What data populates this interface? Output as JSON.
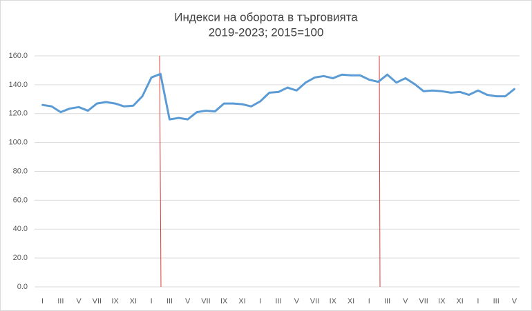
{
  "chart_data": {
    "type": "line",
    "title": "Индекси на оборота в търговията",
    "subtitle": "2019-2023; 2015=100",
    "categories": [
      "I",
      null,
      "III",
      null,
      "V",
      null,
      "VII",
      null,
      "IX",
      null,
      "XI",
      null,
      "I",
      null,
      "III",
      null,
      "V",
      null,
      "VII",
      null,
      "IX",
      null,
      "XI",
      null,
      "I",
      null,
      "III",
      null,
      "V",
      null,
      "VII",
      null,
      "IX",
      null,
      "XI",
      null,
      "I",
      null,
      "III",
      null,
      "V",
      null,
      "VII",
      null,
      "IX",
      null,
      "XI",
      null,
      "I",
      null,
      "III",
      null,
      "V"
    ],
    "series": [
      {
        "color": "#5b9bd5",
        "values": [
          126,
          125,
          121,
          123.5,
          124.5,
          122,
          127,
          128,
          127,
          125,
          125.5,
          132,
          145,
          147.5,
          116,
          117,
          116,
          121,
          122,
          121.5,
          127,
          127,
          126.5,
          125,
          128.5,
          134.5,
          135,
          138,
          136,
          141.5,
          145,
          146,
          144.5,
          147,
          146.5,
          146.5,
          143.5,
          142,
          147,
          141.5,
          144.5,
          140.5,
          135.5,
          136,
          135.5,
          134.5,
          135,
          133,
          136,
          133,
          132,
          132,
          137
        ]
      }
    ],
    "ylim": [
      0,
      160
    ],
    "yticks": [
      {
        "value": 0,
        "label": "0.0"
      },
      {
        "value": 20,
        "label": "20.0"
      },
      {
        "value": 40,
        "label": "40.0"
      },
      {
        "value": 60,
        "label": "60.0"
      },
      {
        "value": 80,
        "label": "80.0"
      },
      {
        "value": 100,
        "label": "100.0"
      },
      {
        "value": 120,
        "label": "120.0"
      },
      {
        "value": 140,
        "label": "140.0"
      },
      {
        "value": 160,
        "label": "160.0"
      }
    ],
    "grid": true
  }
}
